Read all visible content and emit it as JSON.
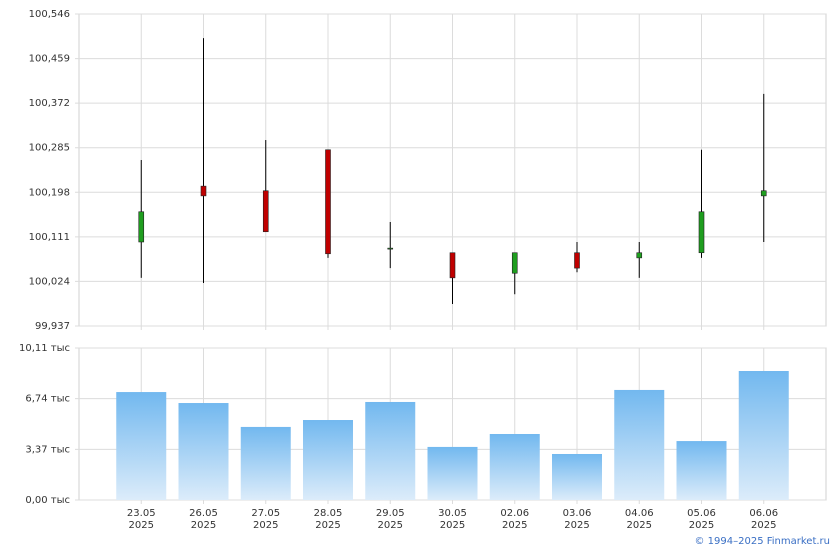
{
  "chart_data": [
    {
      "type": "candlestick",
      "open": [
        100.101,
        100.21,
        100.201,
        100.281,
        100.089,
        100.08,
        100.04,
        100.08,
        100.07,
        100.08,
        100.191
      ],
      "high": [
        100.261,
        100.499,
        100.3,
        100.281,
        100.14,
        100.08,
        100.08,
        100.101,
        100.101,
        100.281,
        100.39
      ],
      "low": [
        100.031,
        100.021,
        100.121,
        100.07,
        100.05,
        99.98,
        99.999,
        100.042,
        100.031,
        100.07,
        100.101
      ],
      "close": [
        100.16,
        100.191,
        100.121,
        100.078,
        100.089,
        100.031,
        100.08,
        100.05,
        100.08,
        100.16,
        100.201
      ],
      "up_color": "#1f9e1f",
      "down_color": "#c00000",
      "ylim": [
        99.937,
        100.546
      ],
      "yticks": [
        {
          "value": 99.937,
          "label": "99,937"
        },
        {
          "value": 100.024,
          "label": "100,024"
        },
        {
          "value": 100.111,
          "label": "100,111"
        },
        {
          "value": 100.198,
          "label": "100,198"
        },
        {
          "value": 100.285,
          "label": "100,285"
        },
        {
          "value": 100.372,
          "label": "100,372"
        },
        {
          "value": 100.459,
          "label": "100,459"
        },
        {
          "value": 100.546,
          "label": "100,546"
        }
      ],
      "grid": true
    },
    {
      "type": "bar",
      "categories": [
        "23.05\n2025",
        "26.05\n2025",
        "27.05\n2025",
        "28.05\n2025",
        "29.05\n2025",
        "30.05\n2025",
        "02.06\n2025",
        "03.06\n2025",
        "04.06\n2025",
        "05.06\n2025",
        "06.06\n2025"
      ],
      "values": [
        7.18,
        6.45,
        4.86,
        5.32,
        6.52,
        3.53,
        4.39,
        3.06,
        7.32,
        3.92,
        8.58
      ],
      "color": "#7dbdf0",
      "ylim": [
        0,
        10.11
      ],
      "yticks": [
        {
          "value": 0,
          "label": "0,00 тыс"
        },
        {
          "value": 3.37,
          "label": "3,37 тыс"
        },
        {
          "value": 6.74,
          "label": "6,74 тыс"
        },
        {
          "value": 10.11,
          "label": "10,11 тыс"
        }
      ],
      "grid": true
    }
  ],
  "footer": "© 1994–2025 Finmarket.ru"
}
